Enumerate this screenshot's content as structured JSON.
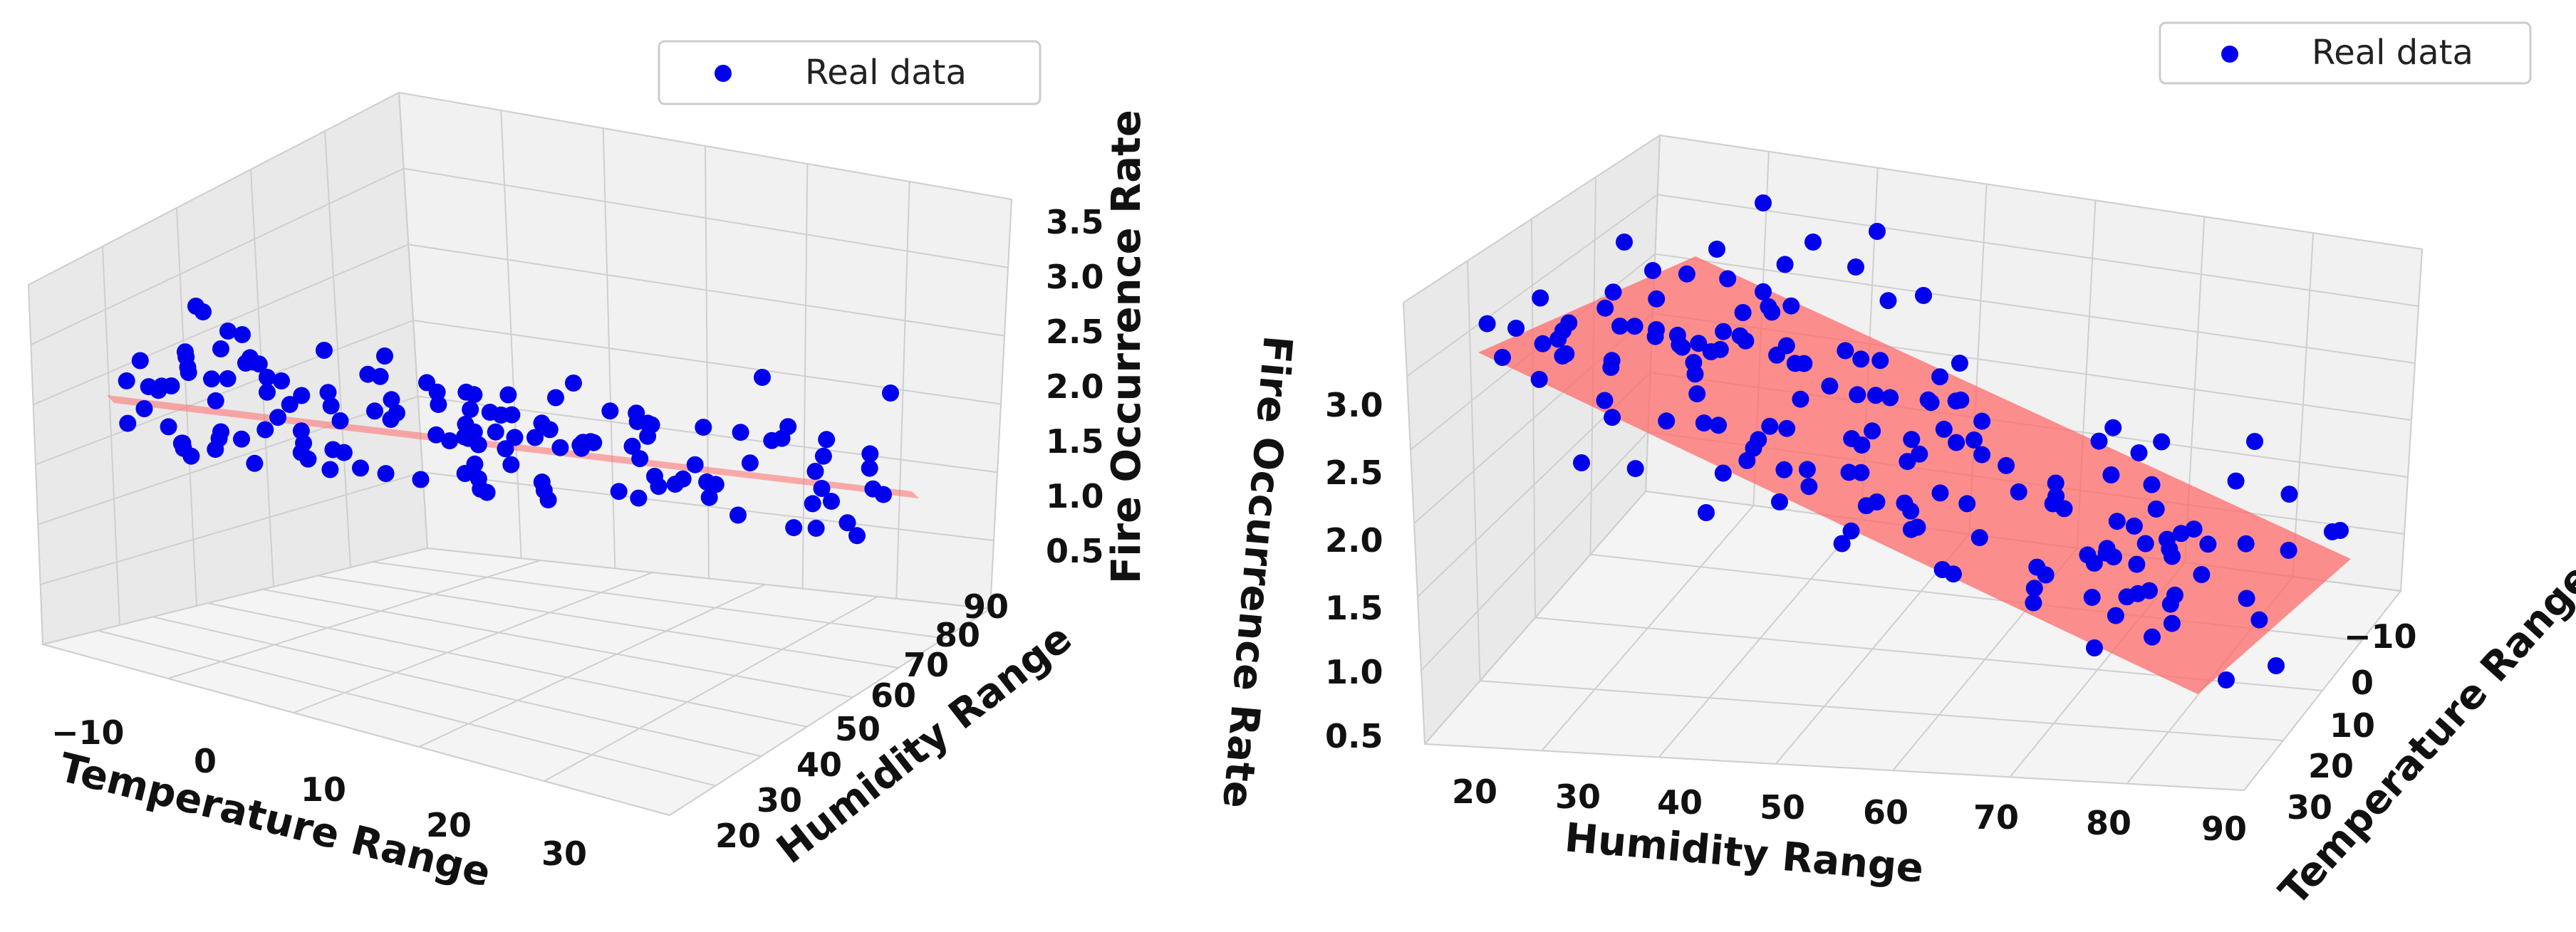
{
  "chart_data": [
    {
      "type": "scatter3d",
      "view": "left",
      "legend": {
        "label": "Real data",
        "placement": "top-right"
      },
      "xlabel": "Temperature Range",
      "ylabel": "Humidity Range",
      "zlabel": "Fire Occurrence Rate",
      "xticks": [
        "−10",
        "0",
        "10",
        "20",
        "30"
      ],
      "yticks": [
        "20",
        "30",
        "40",
        "50",
        "60",
        "70",
        "80",
        "90"
      ],
      "zticks": [
        "0.5",
        "1.0",
        "1.5",
        "2.0",
        "2.5",
        "3.0",
        "3.5"
      ],
      "xlim": [
        -15,
        35
      ],
      "ylim": [
        15,
        95
      ],
      "zlim": [
        0.5,
        3.5
      ],
      "grid": true,
      "fit_plane": {
        "color": "#ff6b6b",
        "z_at_x_min": 1.75,
        "z_at_x_max": 1.05
      }
    },
    {
      "type": "scatter3d",
      "view": "right",
      "legend": {
        "label": "Real data",
        "placement": "top-right"
      },
      "xlabel": "Humidity Range",
      "ylabel": "Temperature Range",
      "zlabel": "Fire Occurrence Rate",
      "xticks": [
        "20",
        "30",
        "40",
        "50",
        "60",
        "70",
        "80",
        "90"
      ],
      "yticks": [
        "−10",
        "0",
        "10",
        "20",
        "30"
      ],
      "zticks": [
        "0.5",
        "1.0",
        "1.5",
        "2.0",
        "2.5",
        "3.0"
      ],
      "xlim": [
        15,
        95
      ],
      "ylim": [
        -15,
        35
      ],
      "zlim": [
        0.5,
        3.5
      ],
      "grid": true,
      "fit_plane": {
        "color": "#ff6b6b",
        "z_at_x_min": 3.0,
        "z_at_x_max": 1.1
      }
    }
  ],
  "colors": {
    "points": "#0000ee",
    "plane": "#ff6b6b",
    "grid": "#cfcfcf",
    "pane": "#f2f2f2"
  }
}
